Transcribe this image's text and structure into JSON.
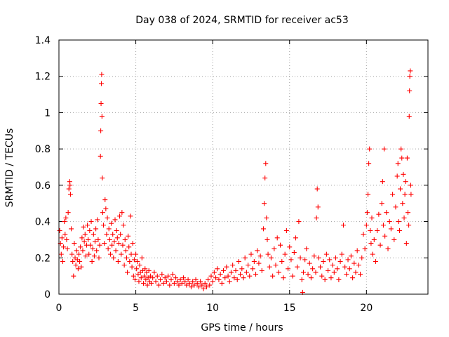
{
  "chart_data": {
    "type": "scatter",
    "title": "Day 038 of 2024, SRMTID for receiver ac53",
    "xlabel": "GPS time / hours",
    "ylabel": "SRMTID / TECUs",
    "xlim": [
      0,
      24
    ],
    "ylim": [
      0,
      1.4
    ],
    "x_ticks": [
      0,
      5,
      10,
      15,
      20
    ],
    "x_tick_labels": [
      "0",
      "5",
      "10",
      "15",
      "20"
    ],
    "y_ticks": [
      0,
      0.2,
      0.4,
      0.6,
      0.8,
      1,
      1.2,
      1.4
    ],
    "y_tick_labels": [
      "0",
      "0.2",
      "0.4",
      "0.6",
      "0.8",
      "1",
      "1.2",
      "1.4"
    ],
    "grid": true,
    "marker": "+",
    "color": "#ff0000",
    "series": [
      {
        "name": "SRMTID",
        "points": [
          [
            0.05,
            0.35
          ],
          [
            0.1,
            0.28
          ],
          [
            0.15,
            0.22
          ],
          [
            0.2,
            0.31
          ],
          [
            0.25,
            0.18
          ],
          [
            0.3,
            0.26
          ],
          [
            0.35,
            0.4
          ],
          [
            0.4,
            0.33
          ],
          [
            0.45,
            0.42
          ],
          [
            0.5,
            0.3
          ],
          [
            0.55,
            0.25
          ],
          [
            0.6,
            0.45
          ],
          [
            0.65,
            0.58
          ],
          [
            0.7,
            0.62
          ],
          [
            0.72,
            0.6
          ],
          [
            0.75,
            0.55
          ],
          [
            0.8,
            0.36
          ],
          [
            0.85,
            0.22
          ],
          [
            0.9,
            0.18
          ],
          [
            0.95,
            0.1
          ],
          [
            1.0,
            0.28
          ],
          [
            1.05,
            0.2
          ],
          [
            1.1,
            0.16
          ],
          [
            1.15,
            0.24
          ],
          [
            1.2,
            0.19
          ],
          [
            1.25,
            0.14
          ],
          [
            1.3,
            0.22
          ],
          [
            1.35,
            0.18
          ],
          [
            1.4,
            0.26
          ],
          [
            1.45,
            0.15
          ],
          [
            1.5,
            0.31
          ],
          [
            1.55,
            0.24
          ],
          [
            1.6,
            0.37
          ],
          [
            1.65,
            0.29
          ],
          [
            1.7,
            0.33
          ],
          [
            1.75,
            0.21
          ],
          [
            1.8,
            0.27
          ],
          [
            1.85,
            0.38
          ],
          [
            1.9,
            0.3
          ],
          [
            1.95,
            0.22
          ],
          [
            2.0,
            0.35
          ],
          [
            2.05,
            0.27
          ],
          [
            2.1,
            0.4
          ],
          [
            2.15,
            0.18
          ],
          [
            2.2,
            0.25
          ],
          [
            2.25,
            0.33
          ],
          [
            2.3,
            0.21
          ],
          [
            2.35,
            0.29
          ],
          [
            2.4,
            0.36
          ],
          [
            2.45,
            0.24
          ],
          [
            2.5,
            0.41
          ],
          [
            2.55,
            0.3
          ],
          [
            2.6,
            0.2
          ],
          [
            2.65,
            0.27
          ],
          [
            2.7,
            0.76
          ],
          [
            2.72,
            0.9
          ],
          [
            2.74,
            1.05
          ],
          [
            2.76,
            1.16
          ],
          [
            2.78,
            1.21
          ],
          [
            2.8,
            0.98
          ],
          [
            2.82,
            0.64
          ],
          [
            2.85,
            0.45
          ],
          [
            2.9,
            0.38
          ],
          [
            2.95,
            0.28
          ],
          [
            3.0,
            0.52
          ],
          [
            3.05,
            0.47
          ],
          [
            3.1,
            0.33
          ],
          [
            3.15,
            0.42
          ],
          [
            3.2,
            0.25
          ],
          [
            3.25,
            0.36
          ],
          [
            3.3,
            0.3
          ],
          [
            3.35,
            0.22
          ],
          [
            3.4,
            0.39
          ],
          [
            3.45,
            0.27
          ],
          [
            3.5,
            0.33
          ],
          [
            3.55,
            0.2
          ],
          [
            3.6,
            0.29
          ],
          [
            3.65,
            0.41
          ],
          [
            3.7,
            0.24
          ],
          [
            3.75,
            0.35
          ],
          [
            3.8,
            0.31
          ],
          [
            3.85,
            0.18
          ],
          [
            3.9,
            0.28
          ],
          [
            3.95,
            0.43
          ],
          [
            4.0,
            0.33
          ],
          [
            4.05,
            0.22
          ],
          [
            4.1,
            0.45
          ],
          [
            4.15,
            0.27
          ],
          [
            4.2,
            0.38
          ],
          [
            4.25,
            0.16
          ],
          [
            4.3,
            0.3
          ],
          [
            4.35,
            0.24
          ],
          [
            4.4,
            0.2
          ],
          [
            4.45,
            0.12
          ],
          [
            4.5,
            0.32
          ],
          [
            4.55,
            0.26
          ],
          [
            4.6,
            0.18
          ],
          [
            4.65,
            0.43
          ],
          [
            4.7,
            0.22
          ],
          [
            4.75,
            0.15
          ],
          [
            4.8,
            0.28
          ],
          [
            4.85,
            0.1
          ],
          [
            4.9,
            0.19
          ],
          [
            4.95,
            0.08
          ],
          [
            5.0,
            0.22
          ],
          [
            5.05,
            0.14
          ],
          [
            5.1,
            0.18
          ],
          [
            5.15,
            0.11
          ],
          [
            5.2,
            0.07
          ],
          [
            5.25,
            0.16
          ],
          [
            5.3,
            0.12
          ],
          [
            5.35,
            0.09
          ],
          [
            5.4,
            0.2
          ],
          [
            5.45,
            0.13
          ],
          [
            5.5,
            0.06
          ],
          [
            5.55,
            0.1
          ],
          [
            5.6,
            0.14
          ],
          [
            5.65,
            0.08
          ],
          [
            5.7,
            0.12
          ],
          [
            5.75,
            0.05
          ],
          [
            5.8,
            0.09
          ],
          [
            5.85,
            0.13
          ],
          [
            5.9,
            0.07
          ],
          [
            5.95,
            0.1
          ],
          [
            6.0,
            0.06
          ],
          [
            6.1,
            0.09
          ],
          [
            6.2,
            0.12
          ],
          [
            6.3,
            0.07
          ],
          [
            6.4,
            0.1
          ],
          [
            6.5,
            0.05
          ],
          [
            6.6,
            0.08
          ],
          [
            6.7,
            0.11
          ],
          [
            6.8,
            0.06
          ],
          [
            6.9,
            0.09
          ],
          [
            7.0,
            0.07
          ],
          [
            7.1,
            0.1
          ],
          [
            7.2,
            0.05
          ],
          [
            7.3,
            0.08
          ],
          [
            7.4,
            0.11
          ],
          [
            7.5,
            0.06
          ],
          [
            7.6,
            0.09
          ],
          [
            7.7,
            0.07
          ],
          [
            7.8,
            0.05
          ],
          [
            7.9,
            0.08
          ],
          [
            8.0,
            0.06
          ],
          [
            8.1,
            0.09
          ],
          [
            8.2,
            0.07
          ],
          [
            8.3,
            0.05
          ],
          [
            8.4,
            0.08
          ],
          [
            8.5,
            0.06
          ],
          [
            8.6,
            0.04
          ],
          [
            8.7,
            0.07
          ],
          [
            8.8,
            0.05
          ],
          [
            8.9,
            0.08
          ],
          [
            9.0,
            0.06
          ],
          [
            9.1,
            0.04
          ],
          [
            9.2,
            0.07
          ],
          [
            9.3,
            0.05
          ],
          [
            9.4,
            0.03
          ],
          [
            9.5,
            0.06
          ],
          [
            9.6,
            0.04
          ],
          [
            9.7,
            0.08
          ],
          [
            9.8,
            0.05
          ],
          [
            9.9,
            0.1
          ],
          [
            10.0,
            0.07
          ],
          [
            10.1,
            0.12
          ],
          [
            10.2,
            0.09
          ],
          [
            10.3,
            0.14
          ],
          [
            10.4,
            0.08
          ],
          [
            10.5,
            0.11
          ],
          [
            10.6,
            0.06
          ],
          [
            10.7,
            0.13
          ],
          [
            10.8,
            0.09
          ],
          [
            10.9,
            0.15
          ],
          [
            11.0,
            0.1
          ],
          [
            11.1,
            0.07
          ],
          [
            11.2,
            0.12
          ],
          [
            11.3,
            0.16
          ],
          [
            11.4,
            0.09
          ],
          [
            11.5,
            0.13
          ],
          [
            11.6,
            0.08
          ],
          [
            11.7,
            0.18
          ],
          [
            11.8,
            0.11
          ],
          [
            11.9,
            0.14
          ],
          [
            12.0,
            0.09
          ],
          [
            12.1,
            0.2
          ],
          [
            12.2,
            0.12
          ],
          [
            12.3,
            0.16
          ],
          [
            12.4,
            0.1
          ],
          [
            12.5,
            0.22
          ],
          [
            12.6,
            0.14
          ],
          [
            12.7,
            0.18
          ],
          [
            12.8,
            0.11
          ],
          [
            12.9,
            0.24
          ],
          [
            13.0,
            0.17
          ],
          [
            13.1,
            0.21
          ],
          [
            13.2,
            0.13
          ],
          [
            13.3,
            0.36
          ],
          [
            13.35,
            0.5
          ],
          [
            13.4,
            0.64
          ],
          [
            13.45,
            0.72
          ],
          [
            13.5,
            0.42
          ],
          [
            13.55,
            0.3
          ],
          [
            13.6,
            0.22
          ],
          [
            13.7,
            0.15
          ],
          [
            13.8,
            0.2
          ],
          [
            13.9,
            0.1
          ],
          [
            14.0,
            0.25
          ],
          [
            14.1,
            0.16
          ],
          [
            14.2,
            0.31
          ],
          [
            14.3,
            0.12
          ],
          [
            14.4,
            0.27
          ],
          [
            14.5,
            0.18
          ],
          [
            14.6,
            0.09
          ],
          [
            14.7,
            0.22
          ],
          [
            14.8,
            0.35
          ],
          [
            14.9,
            0.14
          ],
          [
            15.0,
            0.26
          ],
          [
            15.1,
            0.19
          ],
          [
            15.2,
            0.1
          ],
          [
            15.3,
            0.23
          ],
          [
            15.4,
            0.31
          ],
          [
            15.5,
            0.15
          ],
          [
            15.6,
            0.4
          ],
          [
            15.7,
            0.2
          ],
          [
            15.8,
            0.08
          ],
          [
            15.85,
            0.01
          ],
          [
            15.9,
            0.12
          ],
          [
            16.0,
            0.19
          ],
          [
            16.1,
            0.25
          ],
          [
            16.2,
            0.11
          ],
          [
            16.3,
            0.17
          ],
          [
            16.4,
            0.09
          ],
          [
            16.5,
            0.14
          ],
          [
            16.6,
            0.21
          ],
          [
            16.7,
            0.12
          ],
          [
            16.75,
            0.42
          ],
          [
            16.8,
            0.58
          ],
          [
            16.85,
            0.48
          ],
          [
            16.9,
            0.2
          ],
          [
            17.0,
            0.15
          ],
          [
            17.1,
            0.1
          ],
          [
            17.2,
            0.18
          ],
          [
            17.3,
            0.08
          ],
          [
            17.4,
            0.22
          ],
          [
            17.5,
            0.13
          ],
          [
            17.6,
            0.19
          ],
          [
            17.7,
            0.09
          ],
          [
            17.8,
            0.16
          ],
          [
            17.9,
            0.12
          ],
          [
            18.0,
            0.2
          ],
          [
            18.1,
            0.14
          ],
          [
            18.2,
            0.08
          ],
          [
            18.3,
            0.18
          ],
          [
            18.4,
            0.22
          ],
          [
            18.5,
            0.38
          ],
          [
            18.6,
            0.15
          ],
          [
            18.7,
            0.11
          ],
          [
            18.8,
            0.19
          ],
          [
            18.9,
            0.14
          ],
          [
            19.0,
            0.21
          ],
          [
            19.1,
            0.09
          ],
          [
            19.2,
            0.17
          ],
          [
            19.3,
            0.12
          ],
          [
            19.4,
            0.24
          ],
          [
            19.5,
            0.16
          ],
          [
            19.6,
            0.11
          ],
          [
            19.7,
            0.2
          ],
          [
            19.8,
            0.33
          ],
          [
            19.9,
            0.25
          ],
          [
            20.0,
            0.38
          ],
          [
            20.05,
            0.45
          ],
          [
            20.1,
            0.55
          ],
          [
            20.15,
            0.72
          ],
          [
            20.2,
            0.8
          ],
          [
            20.25,
            0.35
          ],
          [
            20.3,
            0.28
          ],
          [
            20.35,
            0.42
          ],
          [
            20.4,
            0.22
          ],
          [
            20.5,
            0.3
          ],
          [
            20.6,
            0.18
          ],
          [
            20.7,
            0.35
          ],
          [
            20.8,
            0.44
          ],
          [
            20.9,
            0.27
          ],
          [
            21.0,
            0.5
          ],
          [
            21.05,
            0.62
          ],
          [
            21.1,
            0.38
          ],
          [
            21.15,
            0.8
          ],
          [
            21.2,
            0.32
          ],
          [
            21.3,
            0.45
          ],
          [
            21.4,
            0.25
          ],
          [
            21.5,
            0.4
          ],
          [
            21.6,
            0.36
          ],
          [
            21.7,
            0.55
          ],
          [
            21.8,
            0.3
          ],
          [
            21.9,
            0.48
          ],
          [
            22.0,
            0.65
          ],
          [
            22.05,
            0.72
          ],
          [
            22.1,
            0.4
          ],
          [
            22.15,
            0.35
          ],
          [
            22.2,
            0.58
          ],
          [
            22.25,
            0.8
          ],
          [
            22.3,
            0.75
          ],
          [
            22.35,
            0.5
          ],
          [
            22.4,
            0.66
          ],
          [
            22.45,
            0.42
          ],
          [
            22.5,
            0.55
          ],
          [
            22.55,
            0.62
          ],
          [
            22.6,
            0.28
          ],
          [
            22.65,
            0.75
          ],
          [
            22.7,
            0.45
          ],
          [
            22.75,
            0.38
          ],
          [
            22.78,
            0.98
          ],
          [
            22.8,
            1.12
          ],
          [
            22.82,
            1.2
          ],
          [
            22.85,
            1.23
          ],
          [
            22.88,
            0.6
          ],
          [
            22.9,
            0.55
          ]
        ]
      }
    ]
  }
}
